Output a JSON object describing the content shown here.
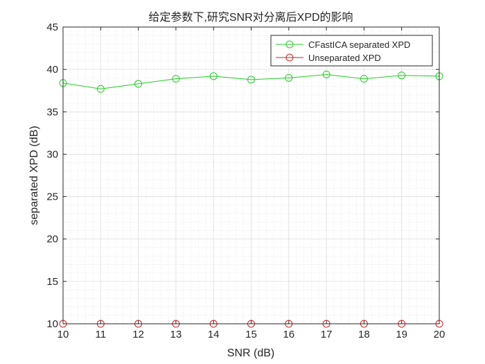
{
  "chart_data": {
    "type": "line",
    "title": "给定参数下,研究SNR对分离后XPD的影响",
    "xlabel": "SNR (dB)",
    "ylabel": "separated XPD (dB)",
    "xlim": [
      10,
      20
    ],
    "ylim": [
      10,
      45
    ],
    "xticks": [
      10,
      11,
      12,
      13,
      14,
      15,
      16,
      17,
      18,
      19,
      20
    ],
    "yticks": [
      10,
      15,
      20,
      25,
      30,
      35,
      40,
      45
    ],
    "grid": true,
    "minor_grid": true,
    "legend_position": "top-right",
    "x": [
      10,
      11,
      12,
      13,
      14,
      15,
      16,
      17,
      18,
      19,
      20
    ],
    "series": [
      {
        "name": "CFastICA separated XPD",
        "color": "#22cc22",
        "marker": "circle",
        "values": [
          38.4,
          37.7,
          38.3,
          38.9,
          39.2,
          38.8,
          39.0,
          39.4,
          38.9,
          39.3,
          39.2
        ]
      },
      {
        "name": "Unseparated XPD",
        "color": "#cc2222",
        "marker": "circle",
        "values": [
          10,
          10,
          10,
          10,
          10,
          10,
          10,
          10,
          10,
          10,
          10
        ]
      }
    ]
  }
}
